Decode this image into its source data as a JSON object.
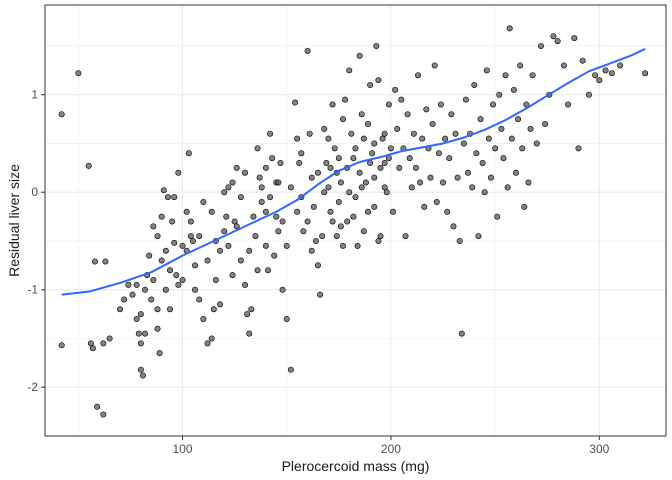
{
  "chart_data": {
    "type": "scatter",
    "title": "",
    "xlabel": "Plerocercoid mass (mg)",
    "ylabel": "Residual liver size",
    "xlim": [
      34,
      332
    ],
    "ylim": [
      -2.5,
      1.92
    ],
    "x_ticks": [
      100,
      200,
      300
    ],
    "y_ticks": [
      -2,
      -1,
      0,
      1
    ],
    "grid": true,
    "legend": "none",
    "colors": {
      "point_fill": "#595959",
      "point_stroke": "#000000",
      "smooth_line": "#3366FF",
      "panel_border": "#333333",
      "grid": "#ebebeb"
    },
    "series": [
      {
        "kind": "points",
        "points": [
          [
            42,
            0.8
          ],
          [
            50,
            1.22
          ],
          [
            55,
            0.27
          ],
          [
            42,
            -1.57
          ],
          [
            56,
            -1.55
          ],
          [
            59,
            -2.2
          ],
          [
            62,
            -2.28
          ],
          [
            57,
            -1.6
          ],
          [
            62,
            -1.55
          ],
          [
            65,
            -1.5
          ],
          [
            63,
            -0.71
          ],
          [
            58,
            -0.71
          ],
          [
            70,
            -1.2
          ],
          [
            72,
            -1.1
          ],
          [
            74,
            -0.95
          ],
          [
            76,
            -1.05
          ],
          [
            78,
            -1.3
          ],
          [
            79,
            -1.45
          ],
          [
            80,
            -1.55
          ],
          [
            80,
            -1.82
          ],
          [
            81,
            -1.88
          ],
          [
            82,
            -1.45
          ],
          [
            83,
            -0.85
          ],
          [
            85,
            -1.1
          ],
          [
            88,
            -1.2
          ],
          [
            86,
            -0.9
          ],
          [
            88,
            -1.4
          ],
          [
            89,
            -1.65
          ],
          [
            90,
            -0.7
          ],
          [
            92,
            -1.0
          ],
          [
            91,
            0.02
          ],
          [
            93,
            -0.05
          ],
          [
            95,
            -0.3
          ],
          [
            96,
            -0.52
          ],
          [
            97,
            -0.85
          ],
          [
            98,
            -0.95
          ],
          [
            100,
            -0.55
          ],
          [
            102,
            -0.2
          ],
          [
            103,
            0.4
          ],
          [
            104,
            -0.45
          ],
          [
            105,
            -0.5
          ],
          [
            106,
            -0.75
          ],
          [
            108,
            -1.1
          ],
          [
            110,
            -1.3
          ],
          [
            112,
            -1.55
          ],
          [
            114,
            -1.5
          ],
          [
            115,
            -1.2
          ],
          [
            116,
            -0.9
          ],
          [
            118,
            -0.6
          ],
          [
            120,
            -0.4
          ],
          [
            121,
            -0.25
          ],
          [
            122,
            0.05
          ],
          [
            124,
            0.1
          ],
          [
            125,
            -0.3
          ],
          [
            126,
            0.25
          ],
          [
            128,
            -0.7
          ],
          [
            130,
            -0.95
          ],
          [
            131,
            -1.25
          ],
          [
            132,
            -1.45
          ],
          [
            133,
            -1.2
          ],
          [
            135,
            -0.45
          ],
          [
            136,
            0.45
          ],
          [
            137,
            0.15
          ],
          [
            138,
            -0.1
          ],
          [
            140,
            -0.55
          ],
          [
            141,
            -0.8
          ],
          [
            142,
            0.6
          ],
          [
            143,
            0.35
          ],
          [
            145,
            -0.25
          ],
          [
            146,
            -0.4
          ],
          [
            148,
            -1.0
          ],
          [
            150,
            -1.3
          ],
          [
            152,
            -1.82
          ],
          [
            154,
            0.92
          ],
          [
            155,
            0.55
          ],
          [
            156,
            0.3
          ],
          [
            157,
            -0.05
          ],
          [
            158,
            -0.4
          ],
          [
            160,
            1.45
          ],
          [
            161,
            0.6
          ],
          [
            162,
            0.15
          ],
          [
            163,
            -0.15
          ],
          [
            164,
            -0.5
          ],
          [
            165,
            -0.75
          ],
          [
            166,
            -1.05
          ],
          [
            168,
            0.65
          ],
          [
            169,
            0.3
          ],
          [
            170,
            0.05
          ],
          [
            171,
            -0.2
          ],
          [
            172,
            0.9
          ],
          [
            173,
            0.45
          ],
          [
            174,
            0.2
          ],
          [
            175,
            -0.1
          ],
          [
            176,
            -0.35
          ],
          [
            177,
            0.75
          ],
          [
            178,
            0.95
          ],
          [
            179,
            0.25
          ],
          [
            180,
            1.25
          ],
          [
            181,
            0.6
          ],
          [
            182,
            0.35
          ],
          [
            183,
            -0.05
          ],
          [
            184,
            -0.55
          ],
          [
            185,
            1.4
          ],
          [
            186,
            0.8
          ],
          [
            187,
            0.55
          ],
          [
            188,
            0.1
          ],
          [
            189,
            0.7
          ],
          [
            190,
            1.1
          ],
          [
            191,
            0.4
          ],
          [
            192,
            0.15
          ],
          [
            193,
            1.5
          ],
          [
            194,
            1.15
          ],
          [
            195,
            -0.45
          ],
          [
            196,
            0.55
          ],
          [
            197,
            0.3
          ],
          [
            198,
            0.0
          ],
          [
            199,
            0.9
          ],
          [
            200,
            0.45
          ],
          [
            201,
            -0.2
          ],
          [
            202,
            1.05
          ],
          [
            203,
            0.65
          ],
          [
            204,
            0.25
          ],
          [
            205,
            0.95
          ],
          [
            206,
            0.45
          ],
          [
            207,
            -0.45
          ],
          [
            208,
            0.8
          ],
          [
            209,
            0.35
          ],
          [
            210,
            0.05
          ],
          [
            211,
            0.6
          ],
          [
            212,
            0.25
          ],
          [
            213,
            1.2
          ],
          [
            214,
            0.1
          ],
          [
            215,
            0.55
          ],
          [
            216,
            -0.15
          ],
          [
            217,
            0.85
          ],
          [
            218,
            0.45
          ],
          [
            219,
            0.15
          ],
          [
            220,
            0.7
          ],
          [
            221,
            1.3
          ],
          [
            222,
            -0.1
          ],
          [
            223,
            0.4
          ],
          [
            224,
            0.9
          ],
          [
            225,
            0.1
          ],
          [
            226,
            0.55
          ],
          [
            227,
            -0.2
          ],
          [
            228,
            0.35
          ],
          [
            229,
            0.8
          ],
          [
            230,
            -0.35
          ],
          [
            231,
            0.6
          ],
          [
            232,
            0.15
          ],
          [
            233,
            -0.5
          ],
          [
            234,
            -1.45
          ],
          [
            235,
            0.5
          ],
          [
            236,
            0.95
          ],
          [
            237,
            0.2
          ],
          [
            238,
            0.6
          ],
          [
            239,
            0.05
          ],
          [
            240,
            1.1
          ],
          [
            241,
            0.4
          ],
          [
            242,
            -0.45
          ],
          [
            243,
            0.75
          ],
          [
            244,
            0.3
          ],
          [
            245,
            0.0
          ],
          [
            246,
            1.25
          ],
          [
            247,
            0.55
          ],
          [
            248,
            0.15
          ],
          [
            249,
            0.9
          ],
          [
            250,
            0.45
          ],
          [
            251,
            -0.25
          ],
          [
            252,
            1.0
          ],
          [
            253,
            0.65
          ],
          [
            254,
            0.35
          ],
          [
            255,
            1.2
          ],
          [
            256,
            0.05
          ],
          [
            257,
            1.68
          ],
          [
            258,
            0.55
          ],
          [
            259,
            1.05
          ],
          [
            260,
            0.2
          ],
          [
            261,
            0.75
          ],
          [
            262,
            1.3
          ],
          [
            263,
            0.45
          ],
          [
            264,
            -0.15
          ],
          [
            265,
            0.9
          ],
          [
            266,
            0.1
          ],
          [
            267,
            0.65
          ],
          [
            268,
            1.2
          ],
          [
            270,
            0.5
          ],
          [
            272,
            1.5
          ],
          [
            274,
            0.7
          ],
          [
            276,
            1.0
          ],
          [
            278,
            1.6
          ],
          [
            280,
            1.55
          ],
          [
            283,
            1.3
          ],
          [
            285,
            0.9
          ],
          [
            288,
            1.58
          ],
          [
            290,
            0.45
          ],
          [
            292,
            1.35
          ],
          [
            295,
            1.0
          ],
          [
            298,
            1.2
          ],
          [
            300,
            1.15
          ],
          [
            303,
            1.25
          ],
          [
            306,
            1.22
          ],
          [
            310,
            1.3
          ],
          [
            322,
            1.22
          ],
          [
            140,
            -0.2
          ],
          [
            142,
            -0.05
          ],
          [
            145,
            0.1
          ],
          [
            147,
            0.3
          ],
          [
            150,
            -0.55
          ],
          [
            152,
            0.05
          ],
          [
            155,
            -0.2
          ],
          [
            157,
            0.4
          ],
          [
            160,
            -0.3
          ],
          [
            162,
            -0.6
          ],
          [
            165,
            0.2
          ],
          [
            167,
            -0.45
          ],
          [
            170,
            0.55
          ],
          [
            172,
            -0.3
          ],
          [
            175,
            0.35
          ],
          [
            177,
            -0.55
          ],
          [
            180,
            0.0
          ],
          [
            182,
            -0.25
          ],
          [
            185,
            0.2
          ],
          [
            187,
            -0.4
          ],
          [
            190,
            0.3
          ],
          [
            192,
            -0.15
          ],
          [
            195,
            0.25
          ],
          [
            197,
            0.6
          ],
          [
            100,
            -0.9
          ],
          [
            102,
            -0.6
          ],
          [
            104,
            -0.3
          ],
          [
            106,
            -1.0
          ],
          [
            108,
            -0.45
          ],
          [
            110,
            -0.1
          ],
          [
            112,
            -0.7
          ],
          [
            114,
            -0.2
          ],
          [
            116,
            -0.5
          ],
          [
            118,
            -1.15
          ],
          [
            120,
            0.0
          ],
          [
            122,
            -0.55
          ],
          [
            124,
            -0.85
          ],
          [
            126,
            -0.35
          ],
          [
            128,
            -0.05
          ],
          [
            130,
            0.2
          ],
          [
            132,
            -0.6
          ],
          [
            134,
            -0.25
          ],
          [
            136,
            -0.8
          ],
          [
            138,
            0.05
          ],
          [
            140,
            0.25
          ],
          [
            144,
            -0.65
          ],
          [
            146,
            0.1
          ],
          [
            148,
            -0.3
          ],
          [
            88,
            -0.45
          ],
          [
            90,
            -0.25
          ],
          [
            92,
            -0.6
          ],
          [
            94,
            -1.2
          ],
          [
            96,
            -0.05
          ],
          [
            98,
            0.2
          ],
          [
            94,
            -0.8
          ],
          [
            86,
            -0.35
          ],
          [
            84,
            -0.65
          ],
          [
            82,
            -1.0
          ],
          [
            80,
            -1.25
          ],
          [
            78,
            -0.95
          ],
          [
            168,
            0.0
          ],
          [
            171,
            0.25
          ],
          [
            174,
            -0.45
          ],
          [
            176,
            0.1
          ],
          [
            179,
            -0.3
          ],
          [
            183,
            0.45
          ],
          [
            186,
            0.05
          ],
          [
            189,
            -0.2
          ],
          [
            192,
            0.5
          ],
          [
            194,
            -0.5
          ],
          [
            197,
            0.05
          ],
          [
            199,
            0.35
          ]
        ]
      },
      {
        "kind": "smooth",
        "points": [
          [
            42,
            -1.05
          ],
          [
            55,
            -1.02
          ],
          [
            70,
            -0.93
          ],
          [
            85,
            -0.82
          ],
          [
            100,
            -0.65
          ],
          [
            115,
            -0.5
          ],
          [
            130,
            -0.35
          ],
          [
            145,
            -0.2
          ],
          [
            155,
            -0.08
          ],
          [
            165,
            0.08
          ],
          [
            175,
            0.22
          ],
          [
            185,
            0.31
          ],
          [
            195,
            0.36
          ],
          [
            205,
            0.42
          ],
          [
            215,
            0.46
          ],
          [
            225,
            0.5
          ],
          [
            235,
            0.56
          ],
          [
            245,
            0.64
          ],
          [
            255,
            0.74
          ],
          [
            265,
            0.86
          ],
          [
            275,
            0.99
          ],
          [
            285,
            1.12
          ],
          [
            295,
            1.24
          ],
          [
            305,
            1.32
          ],
          [
            315,
            1.4
          ],
          [
            322,
            1.47
          ]
        ]
      }
    ]
  }
}
